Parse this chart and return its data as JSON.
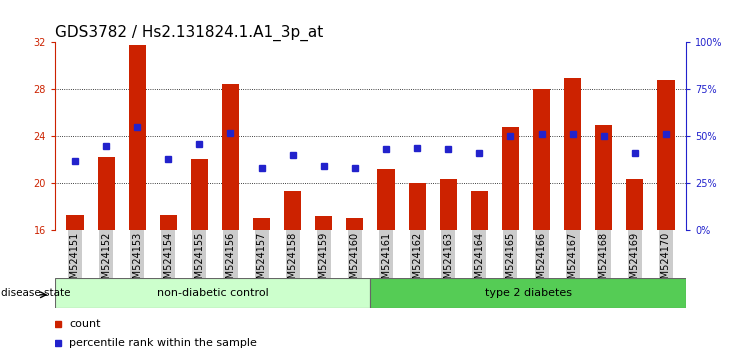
{
  "title": "GDS3782 / Hs2.131824.1.A1_3p_at",
  "samples": [
    "GSM524151",
    "GSM524152",
    "GSM524153",
    "GSM524154",
    "GSM524155",
    "GSM524156",
    "GSM524157",
    "GSM524158",
    "GSM524159",
    "GSM524160",
    "GSM524161",
    "GSM524162",
    "GSM524163",
    "GSM524164",
    "GSM524165",
    "GSM524166",
    "GSM524167",
    "GSM524168",
    "GSM524169",
    "GSM524170"
  ],
  "red_values": [
    17.3,
    22.2,
    31.8,
    17.3,
    22.1,
    28.5,
    17.0,
    19.3,
    17.2,
    17.0,
    21.2,
    20.0,
    20.4,
    19.3,
    24.8,
    28.0,
    29.0,
    25.0,
    20.4,
    28.8
  ],
  "blue_pct": [
    37,
    45,
    55,
    38,
    46,
    52,
    33,
    40,
    34,
    33,
    43,
    44,
    43,
    41,
    50,
    51,
    51,
    50,
    41,
    51
  ],
  "ylim_left": [
    16,
    32
  ],
  "ylim_right": [
    0,
    100
  ],
  "yticks_left": [
    16,
    20,
    24,
    28,
    32
  ],
  "yticks_right": [
    0,
    25,
    50,
    75,
    100
  ],
  "ytick_labels_right": [
    "0%",
    "25%",
    "50%",
    "75%",
    "100%"
  ],
  "red_color": "#cc2200",
  "blue_color": "#2222cc",
  "non_diabetic_color": "#ccffcc",
  "type2_color": "#55cc55",
  "legend_count_label": "count",
  "legend_percentile_label": "percentile rank within the sample",
  "disease_label": "disease state",
  "non_diabetic_text": "non-diabetic control",
  "type2_text": "type 2 diabetes",
  "title_fontsize": 11,
  "tick_fontsize": 7,
  "bar_width": 0.55,
  "n_non_diabetic": 10,
  "n_type2": 10
}
